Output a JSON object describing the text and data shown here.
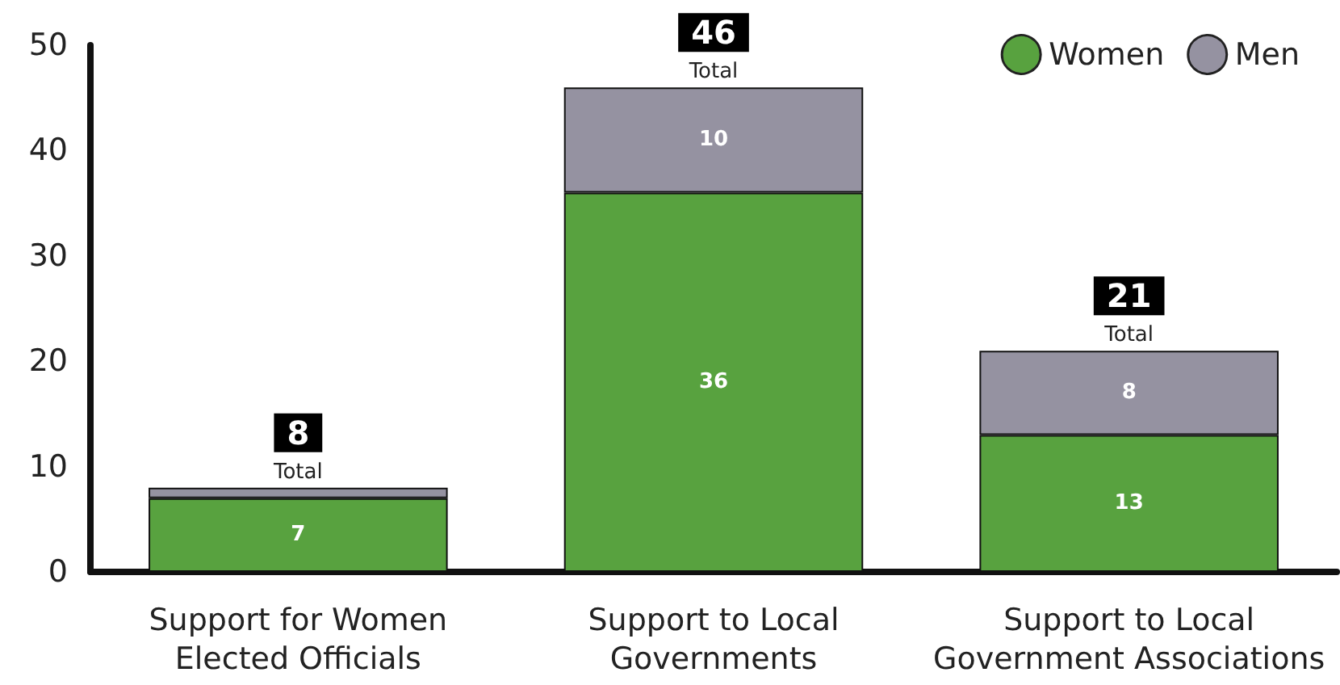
{
  "chart_data": {
    "type": "bar",
    "stacked": true,
    "categories": [
      "Support for Women\nElected Officials",
      "Support to Local\nGovernments",
      "Support to Local\nGovernment Associations"
    ],
    "series": [
      {
        "name": "Women",
        "color": "#58a23f",
        "values": [
          7,
          36,
          13
        ],
        "value_labels": [
          "7",
          "36",
          "13"
        ]
      },
      {
        "name": "Men",
        "color": "#9592a1",
        "values": [
          1,
          10,
          8
        ],
        "value_labels": [
          null,
          "10",
          "8"
        ]
      }
    ],
    "totals": [
      "8",
      "46",
      "21"
    ],
    "annotations": [
      {
        "text": "Total",
        "x": "Support for Women\nElected Officials",
        "y": 8
      },
      {
        "text": "Total",
        "x": "Support to Local\nGovernments",
        "y": 46
      },
      {
        "text": "Total",
        "x": "Support to Local\nGovernment Associations",
        "y": 21
      }
    ],
    "ylim": [
      0,
      50
    ],
    "yticks": [
      0,
      10,
      20,
      30,
      40,
      50
    ],
    "grid": false,
    "legend": "top right"
  }
}
